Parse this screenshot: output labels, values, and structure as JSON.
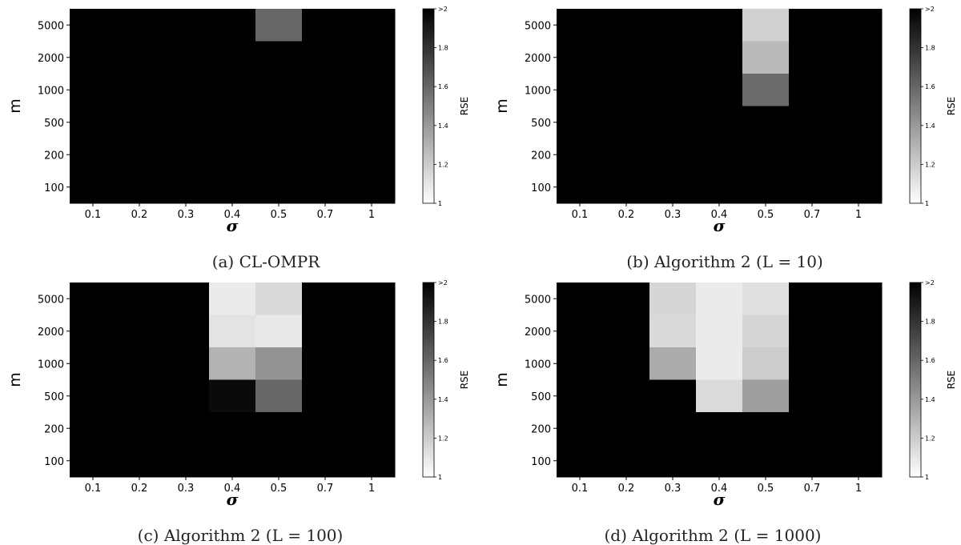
{
  "chart_data": [
    {
      "type": "heatmap",
      "caption": "(a) CL-OMPR",
      "xlabel": "σ",
      "ylabel": "m",
      "x_categories": [
        "0.1",
        "0.2",
        "0.3",
        "0.4",
        "0.5",
        "0.7",
        "1"
      ],
      "y_categories": [
        "100",
        "200",
        "500",
        "1000",
        "2000",
        "5000"
      ],
      "colorbar": {
        "label": "RSE",
        "ticks": [
          "1",
          "1.2",
          "1.4",
          "1.6",
          "1.8",
          ">2"
        ],
        "range": [
          1,
          2
        ],
        "colormap": "gray_r"
      },
      "values": [
        [
          2,
          2,
          2,
          2,
          1.6,
          2,
          2
        ],
        [
          2,
          2,
          2,
          2,
          2,
          2,
          2
        ],
        [
          2,
          2,
          2,
          2,
          2,
          2,
          2
        ],
        [
          2,
          2,
          2,
          2,
          2,
          2,
          2
        ],
        [
          2,
          2,
          2,
          2,
          2,
          2,
          2
        ],
        [
          2,
          2,
          2,
          2,
          2,
          2,
          2
        ]
      ]
    },
    {
      "type": "heatmap",
      "caption": "(b) Algorithm 2 (L = 10)",
      "xlabel": "σ",
      "ylabel": "m",
      "x_categories": [
        "0.1",
        "0.2",
        "0.3",
        "0.4",
        "0.5",
        "0.7",
        "1"
      ],
      "y_categories": [
        "100",
        "200",
        "500",
        "1000",
        "2000",
        "5000"
      ],
      "colorbar": {
        "label": "RSE",
        "ticks": [
          "1",
          "1.2",
          "1.4",
          "1.6",
          "1.8",
          ">2"
        ],
        "range": [
          1,
          2
        ],
        "colormap": "gray_r"
      },
      "values": [
        [
          2,
          2,
          2,
          2,
          1.18,
          2,
          2
        ],
        [
          2,
          2,
          2,
          2,
          1.27,
          2,
          2
        ],
        [
          2,
          2,
          2,
          2,
          1.58,
          2,
          2
        ],
        [
          2,
          2,
          2,
          2,
          2,
          2,
          2
        ],
        [
          2,
          2,
          2,
          2,
          2,
          2,
          2
        ],
        [
          2,
          2,
          2,
          2,
          2,
          2,
          2
        ]
      ]
    },
    {
      "type": "heatmap",
      "caption": "(c) Algorithm 2 (L = 100)",
      "xlabel": "σ",
      "ylabel": "m",
      "x_categories": [
        "0.1",
        "0.2",
        "0.3",
        "0.4",
        "0.5",
        "0.7",
        "1"
      ],
      "y_categories": [
        "100",
        "200",
        "500",
        "1000",
        "2000",
        "5000"
      ],
      "colorbar": {
        "label": "RSE",
        "ticks": [
          "1",
          "1.2",
          "1.4",
          "1.6",
          "1.8",
          ">2"
        ],
        "range": [
          1,
          2
        ],
        "colormap": "gray_r"
      },
      "values": [
        [
          2,
          2,
          2,
          1.08,
          1.15,
          2,
          2
        ],
        [
          2,
          2,
          2,
          1.11,
          1.09,
          2,
          2
        ],
        [
          2,
          2,
          2,
          1.3,
          1.42,
          2,
          2
        ],
        [
          2,
          2,
          2,
          1.96,
          1.6,
          2,
          2
        ],
        [
          2,
          2,
          2,
          2,
          2,
          2,
          2
        ],
        [
          2,
          2,
          2,
          2,
          2,
          2,
          2
        ]
      ]
    },
    {
      "type": "heatmap",
      "caption": "(d) Algorithm 2 (L = 1000)",
      "xlabel": "σ",
      "ylabel": "m",
      "x_categories": [
        "0.1",
        "0.2",
        "0.3",
        "0.4",
        "0.5",
        "0.7",
        "1"
      ],
      "y_categories": [
        "100",
        "200",
        "500",
        "1000",
        "2000",
        "5000"
      ],
      "colorbar": {
        "label": "RSE",
        "ticks": [
          "1",
          "1.2",
          "1.4",
          "1.6",
          "1.8",
          ">2"
        ],
        "range": [
          1,
          2
        ],
        "colormap": "gray_r"
      },
      "values": [
        [
          2,
          2,
          1.16,
          1.08,
          1.12,
          2,
          2
        ],
        [
          2,
          2,
          1.15,
          1.08,
          1.16,
          2,
          2
        ],
        [
          2,
          2,
          1.33,
          1.08,
          1.2,
          2,
          2
        ],
        [
          2,
          2,
          2,
          1.14,
          1.38,
          2,
          2
        ],
        [
          2,
          2,
          2,
          2,
          2,
          2,
          2
        ],
        [
          2,
          2,
          2,
          2,
          2,
          2,
          2
        ]
      ]
    }
  ]
}
